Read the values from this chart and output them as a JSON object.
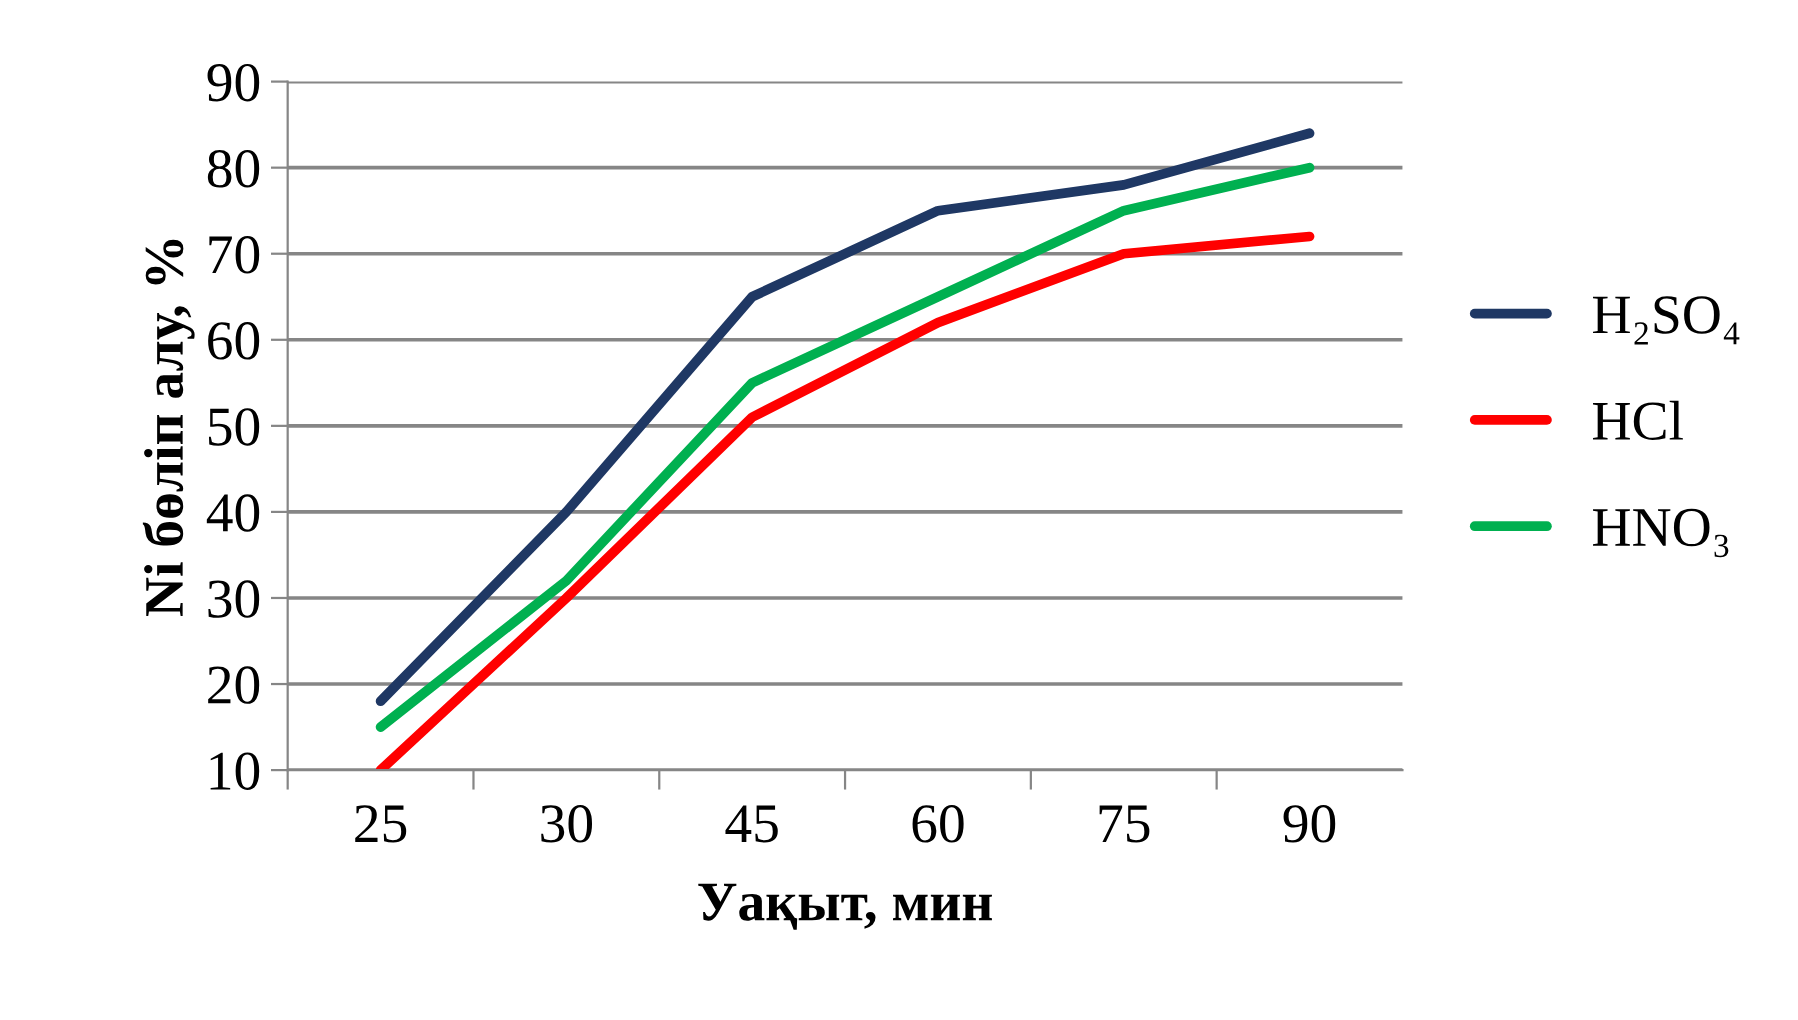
{
  "chart_data": {
    "type": "line",
    "xlabel": "Уақыт, мин",
    "ylabel": "Ni бөліп алу, %",
    "categories": [
      "25",
      "30",
      "45",
      "60",
      "75",
      "90"
    ],
    "series": [
      {
        "name": "H₂SO₄",
        "color": "#1f3864",
        "values": [
          18,
          40,
          65,
          75,
          78,
          84
        ]
      },
      {
        "name": "HCl",
        "color": "#ff0000",
        "values": [
          10,
          30,
          51,
          62,
          70,
          72
        ]
      },
      {
        "name": "HNO₃",
        "color": "#00b050",
        "values": [
          15,
          32,
          55,
          65,
          75,
          80
        ]
      }
    ],
    "ylim": [
      10,
      90
    ],
    "yticks": [
      10,
      20,
      30,
      40,
      50,
      60,
      70,
      80,
      90
    ],
    "grid": "y",
    "legend": "right",
    "marker": "none",
    "line_style": "solid"
  }
}
